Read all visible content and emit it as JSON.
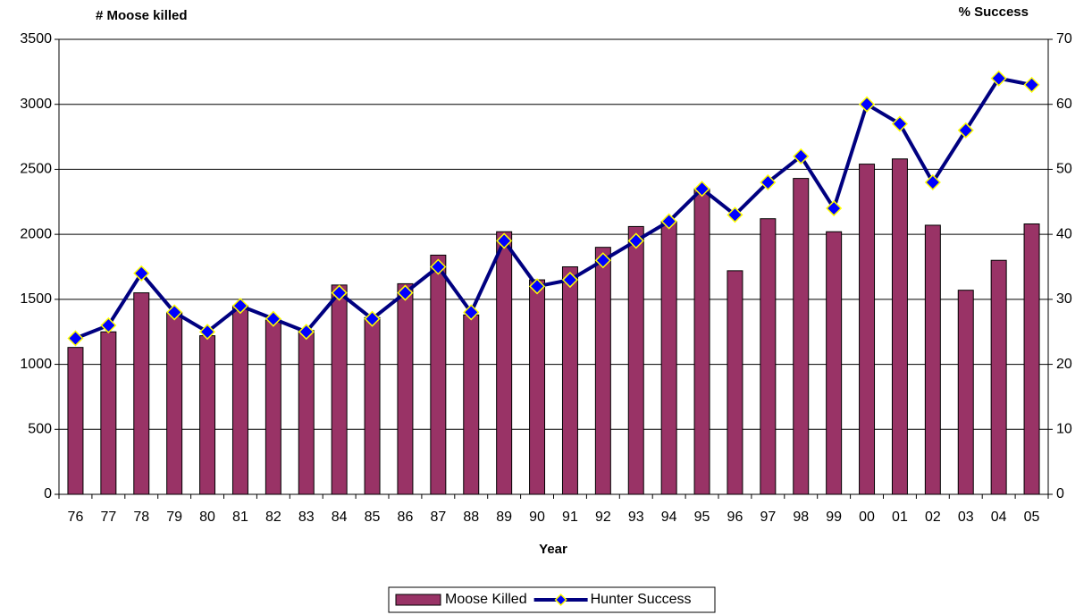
{
  "chart_data": {
    "type": "bar",
    "y_label": "# Moose killed",
    "y2_label": "%  Success",
    "x_label": "Year",
    "categories": [
      "76",
      "77",
      "78",
      "79",
      "80",
      "81",
      "82",
      "83",
      "84",
      "85",
      "86",
      "87",
      "88",
      "89",
      "90",
      "91",
      "92",
      "93",
      "94",
      "95",
      "96",
      "97",
      "98",
      "99",
      "00",
      "01",
      "02",
      "03",
      "04",
      "05"
    ],
    "series": [
      {
        "name": "Moose Killed",
        "type": "bar",
        "color": "#993366",
        "values": [
          1130,
          1250,
          1550,
          1400,
          1220,
          1450,
          1340,
          1260,
          1610,
          1360,
          1620,
          1840,
          1380,
          2020,
          1650,
          1750,
          1900,
          2060,
          2100,
          2350,
          1720,
          2120,
          2430,
          2020,
          2540,
          2580,
          2070,
          1570,
          1800,
          2080
        ]
      },
      {
        "name": "Hunter Success",
        "type": "line",
        "axis": "y2",
        "color": "#000080",
        "marker_color": "#0000ff",
        "marker_edge": "#ffff00",
        "values": [
          24,
          26,
          34,
          28,
          25,
          29,
          27,
          25,
          31,
          27,
          31,
          35,
          28,
          39,
          32,
          33,
          36,
          39,
          42,
          47,
          43,
          48,
          52,
          44,
          60,
          57,
          48,
          56,
          64,
          63
        ]
      }
    ],
    "ylim": [
      0,
      3500
    ],
    "yticks": [
      0,
      500,
      1000,
      1500,
      2000,
      2500,
      3000,
      3500
    ],
    "y2lim": [
      0,
      70
    ],
    "y2ticks": [
      0,
      10,
      20,
      30,
      40,
      50,
      60,
      70
    ],
    "grid": true,
    "legend": "bottom"
  }
}
